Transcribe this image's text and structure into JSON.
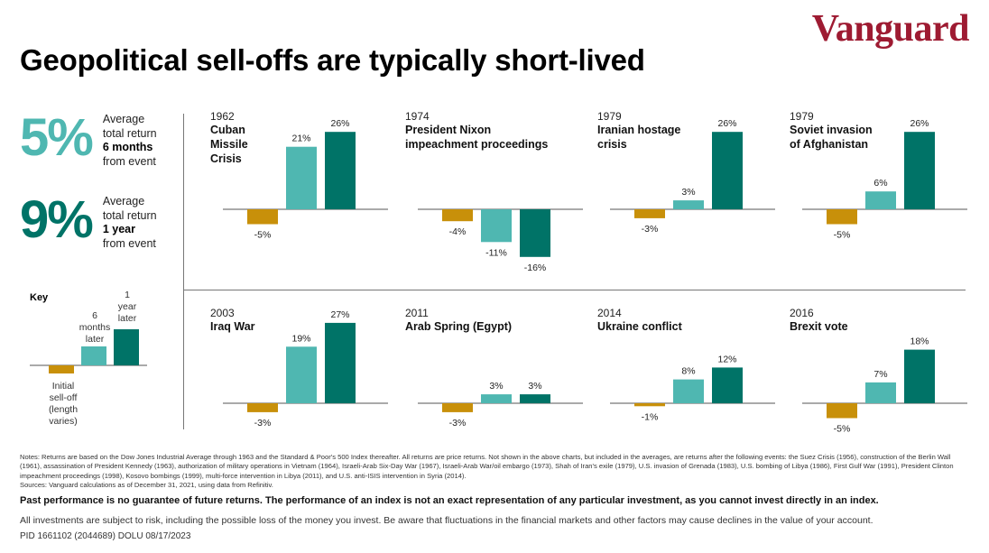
{
  "brand": "Vanguard",
  "title": "Geopolitical sell-offs are typically short-lived",
  "stats": [
    {
      "value": "5%",
      "line1": "Average",
      "line2": "total return",
      "line3": "6 months",
      "line4": "from event"
    },
    {
      "value": "9%",
      "line1": "Average",
      "line2": "total return",
      "line3": "1 year",
      "line4": "from event"
    }
  ],
  "key": {
    "title": "Key",
    "bar1_label": [
      "Initial",
      "sell-off",
      "(length",
      "varies)"
    ],
    "bar2_label": [
      "6",
      "months",
      "later"
    ],
    "bar3_label": [
      "1",
      "year",
      "later"
    ]
  },
  "colors": {
    "sell_off": "#c8900a",
    "six_months": "#4fb7b1",
    "one_year": "#007367",
    "brand": "#9e1b32"
  },
  "chart_data": [
    {
      "type": "bar",
      "year": "1962",
      "title": [
        "Cuban",
        "Missile",
        "Crisis"
      ],
      "values": [
        -5,
        21,
        26
      ],
      "labels": [
        "-5%",
        "21%",
        "26%"
      ]
    },
    {
      "type": "bar",
      "year": "1974",
      "title": [
        "President Nixon",
        "impeachment proceedings"
      ],
      "values": [
        -4,
        -11,
        -16
      ],
      "labels": [
        "-4%",
        "-11%",
        "-16%"
      ]
    },
    {
      "type": "bar",
      "year": "1979",
      "title": [
        "Iranian hostage",
        "crisis"
      ],
      "values": [
        -3,
        3,
        26
      ],
      "labels": [
        "-3%",
        "3%",
        "26%"
      ]
    },
    {
      "type": "bar",
      "year": "1979",
      "title": [
        "Soviet invasion",
        "of Afghanistan"
      ],
      "values": [
        -5,
        6,
        26
      ],
      "labels": [
        "-5%",
        "6%",
        "26%"
      ]
    },
    {
      "type": "bar",
      "year": "2003",
      "title": [
        "Iraq War"
      ],
      "values": [
        -3,
        19,
        27
      ],
      "labels": [
        "-3%",
        "19%",
        "27%"
      ]
    },
    {
      "type": "bar",
      "year": "2011",
      "title": [
        "Arab Spring (Egypt)"
      ],
      "values": [
        -3,
        3,
        3
      ],
      "labels": [
        "-3%",
        "3%",
        "3%"
      ]
    },
    {
      "type": "bar",
      "year": "2014",
      "title": [
        "Ukraine conflict"
      ],
      "values": [
        -1,
        8,
        12
      ],
      "labels": [
        "-1%",
        "8%",
        "12%"
      ]
    },
    {
      "type": "bar",
      "year": "2016",
      "title": [
        "Brexit vote"
      ],
      "values": [
        -5,
        7,
        18
      ],
      "labels": [
        "-5%",
        "7%",
        "18%"
      ]
    }
  ],
  "notes": "Notes: Returns are based on the Dow Jones Industrial Average through 1963 and the Standard & Poor's 500 Index thereafter. All returns are price returns. Not shown in the above charts, but included in the averages, are returns after the following events: the Suez Crisis (1956), construction of the Berlin Wall (1961), assassination of President Kennedy (1963), authorization of military operations in Vietnam (1964), Israeli-Arab Six-Day War (1967), Israeli-Arab War/oil embargo (1973), Shah of Iran's exile (1979), U.S. invasion of Grenada (1983), U.S. bombing of Libya (1986), First Gulf War (1991), President Clinton impeachment proceedings (1998), Kosovo bombings (1999), multi-force intervention in Libya (2011), and U.S. anti-ISIS intervention in Syria (2014).",
  "sources": "Sources: Vanguard calculations as of December 31, 2021, using data from Refinitiv.",
  "disclaimer": "Past performance is no guarantee of future returns. The performance of an index is not an exact representation of any particular investment, as you cannot invest directly in an index.",
  "risk": "All investments are subject to risk, including the possible loss of the money you invest. Be aware that fluctuations in the financial markets and other factors may cause declines in the value of your account.",
  "pid": "PID 1661102 (2044689) DOLU 08/17/2023"
}
